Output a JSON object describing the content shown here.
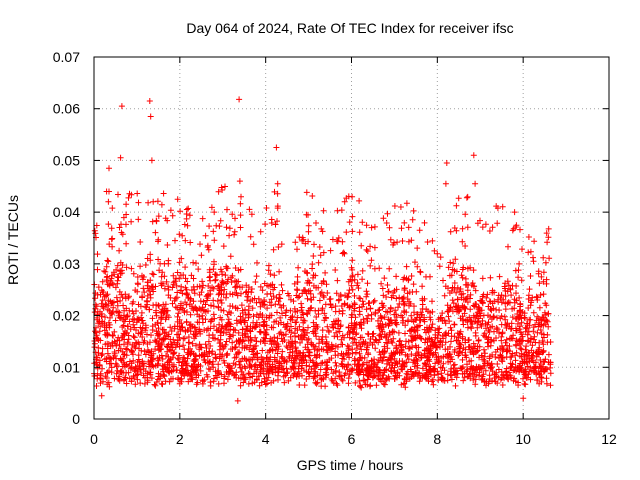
{
  "chart_data": {
    "type": "scatter",
    "title": "Day 064 of 2024, Rate Of TEC Index for receiver ifsc",
    "xlabel": "GPS time / hours",
    "ylabel": "ROTI / TECUs",
    "xlim": [
      0,
      12
    ],
    "ylim": [
      0,
      0.07
    ],
    "xticks": [
      "0",
      "2",
      "4",
      "6",
      "8",
      "10",
      "12"
    ],
    "yticks": [
      "0",
      "0.01",
      "0.02",
      "0.03",
      "0.04",
      "0.05",
      "0.06",
      "0.07"
    ],
    "grid": true,
    "marker": "+",
    "series": [
      {
        "name": "ROTI",
        "color": "#ff0000",
        "x_range": [
          0.0,
          10.65
        ],
        "typical_range": [
          0.005,
          0.028
        ],
        "notable_points": [
          {
            "x": 0.65,
            "y": 0.0605
          },
          {
            "x": 1.3,
            "y": 0.0615
          },
          {
            "x": 1.32,
            "y": 0.0585
          },
          {
            "x": 3.38,
            "y": 0.0618
          },
          {
            "x": 4.25,
            "y": 0.0525
          },
          {
            "x": 4.28,
            "y": 0.0455
          },
          {
            "x": 1.35,
            "y": 0.05
          },
          {
            "x": 1.38,
            "y": 0.042
          },
          {
            "x": 0.35,
            "y": 0.0485
          },
          {
            "x": 0.62,
            "y": 0.0505
          },
          {
            "x": 0.35,
            "y": 0.044
          },
          {
            "x": 8.22,
            "y": 0.0495
          },
          {
            "x": 8.2,
            "y": 0.0455
          },
          {
            "x": 8.85,
            "y": 0.051
          },
          {
            "x": 8.88,
            "y": 0.0455
          },
          {
            "x": 9.8,
            "y": 0.04
          },
          {
            "x": 7.15,
            "y": 0.041
          },
          {
            "x": 4.95,
            "y": 0.0395
          },
          {
            "x": 3.4,
            "y": 0.046
          },
          {
            "x": 1.95,
            "y": 0.0425
          },
          {
            "x": 2.8,
            "y": 0.04
          },
          {
            "x": 3.1,
            "y": 0.0405
          },
          {
            "x": 0.18,
            "y": 0.0045
          },
          {
            "x": 3.35,
            "y": 0.0035
          },
          {
            "x": 10.0,
            "y": 0.004
          }
        ]
      }
    ]
  }
}
